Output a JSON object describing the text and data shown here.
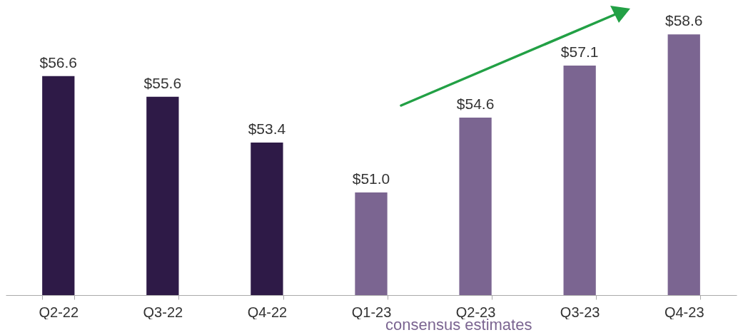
{
  "chart_data": {
    "type": "bar",
    "categories": [
      "Q2-22",
      "Q3-22",
      "Q4-22",
      "Q1-23",
      "Q2-23",
      "Q3-23",
      "Q4-23"
    ],
    "values": [
      56.6,
      55.6,
      53.4,
      51.0,
      54.6,
      57.1,
      58.6
    ],
    "colors": [
      "#2e1a47",
      "#2e1a47",
      "#2e1a47",
      "#7b6591",
      "#7b6591",
      "#7b6591",
      "#7b6591"
    ],
    "value_labels": [
      "$56.6",
      "$55.6",
      "$53.4",
      "$51.0",
      "$54.6",
      "$57.1",
      "$58.6"
    ],
    "tick_labels": "x",
    "grid": false,
    "annotations": [
      "consensus estimates"
    ]
  }
}
